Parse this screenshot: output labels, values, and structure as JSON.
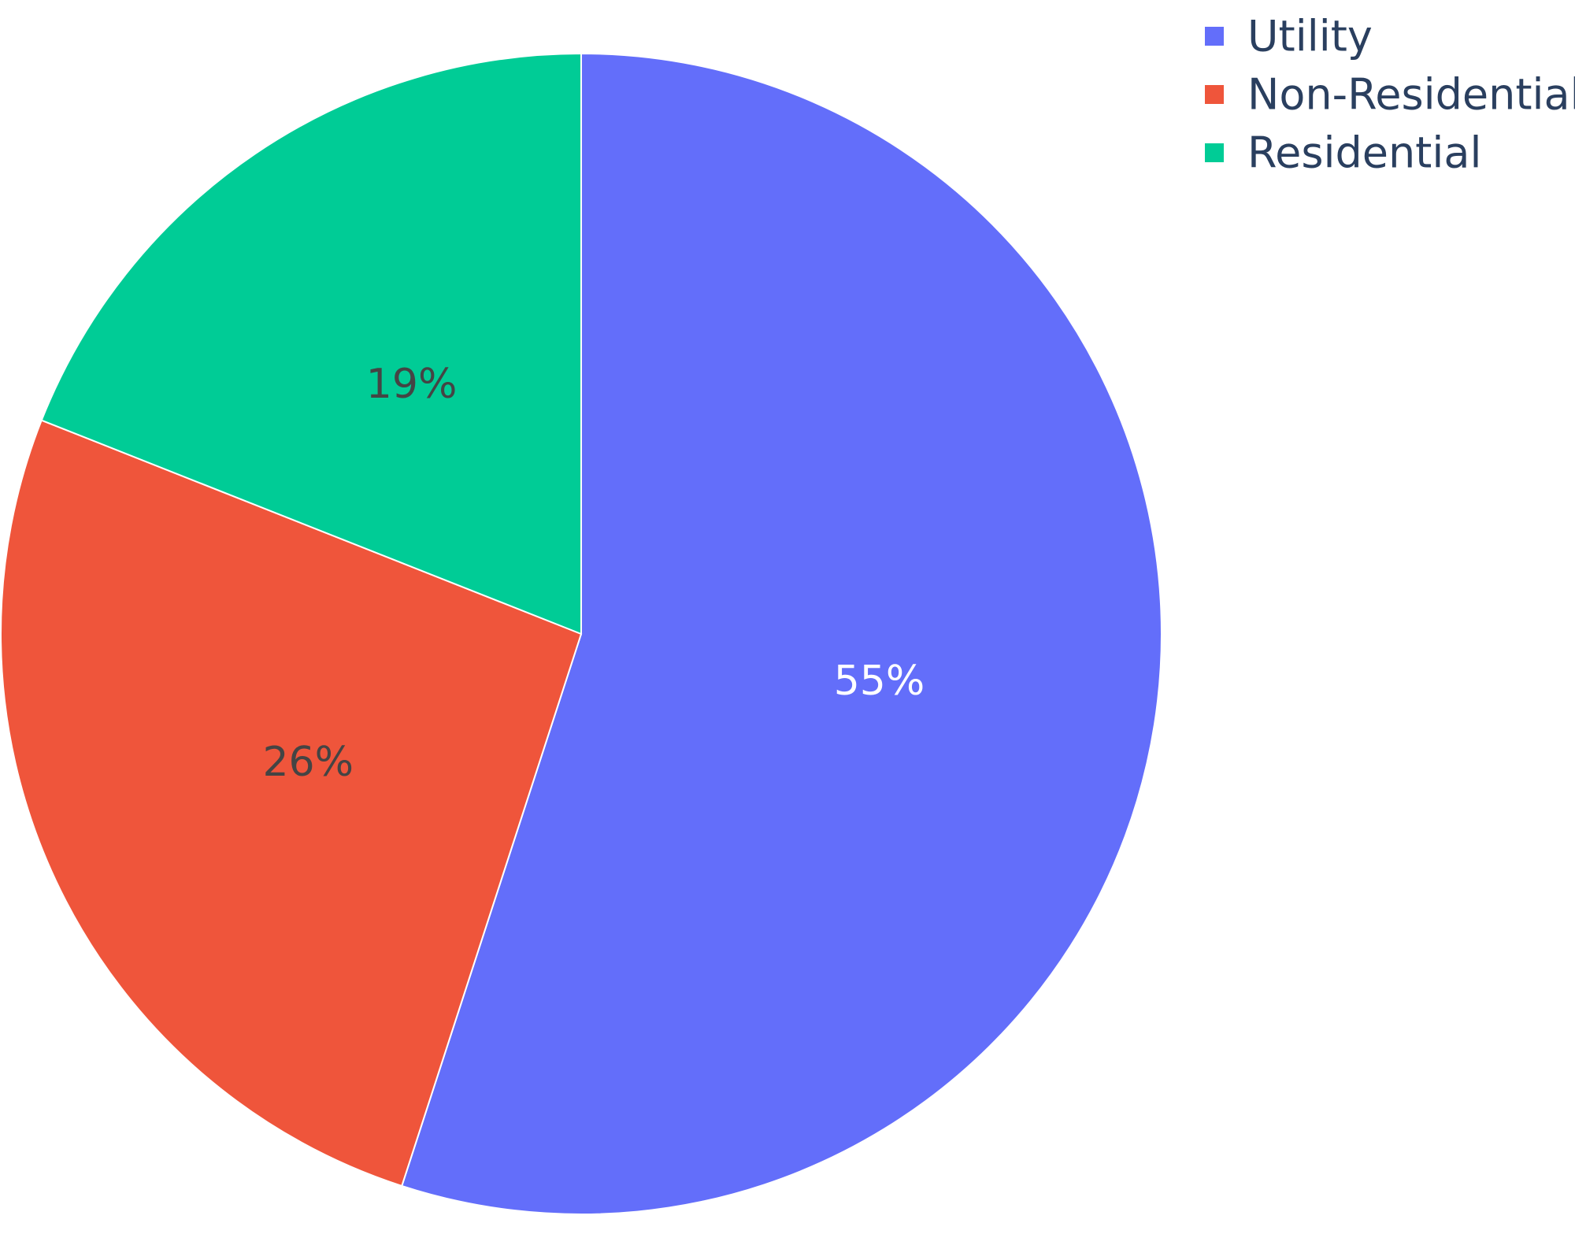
{
  "chart_data": {
    "type": "pie",
    "title": "",
    "categories": [
      "Utility",
      "Non-Residential",
      "Residential"
    ],
    "values": [
      55,
      26,
      19
    ],
    "labels": [
      "55%",
      "26%",
      "19%"
    ],
    "colors": [
      "#636efa",
      "#ef553b",
      "#00cc96"
    ],
    "label_colors": [
      "#ffffff",
      "#444444",
      "#444444"
    ],
    "start_angle_deg": 90,
    "direction": "clockwise",
    "legend": {
      "placement": "top-right",
      "items": [
        "Utility",
        "Non-Residential",
        "Residential"
      ]
    }
  }
}
